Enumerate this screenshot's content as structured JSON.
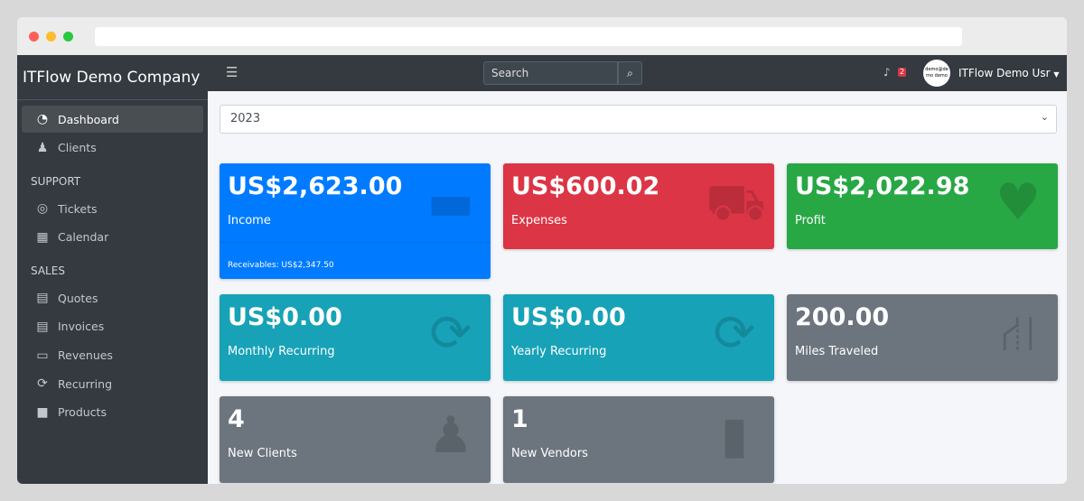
{
  "sidebar": {
    "brand": "ITFlow Demo Company",
    "items": [
      {
        "label": "Dashboard",
        "icon": "gauge-icon"
      },
      {
        "label": "Clients",
        "icon": "users-icon"
      }
    ],
    "support_header": "SUPPORT",
    "support": [
      {
        "label": "Tickets",
        "icon": "lifebuoy-icon"
      },
      {
        "label": "Calendar",
        "icon": "calendar-icon"
      }
    ],
    "sales_header": "SALES",
    "sales": [
      {
        "label": "Quotes",
        "icon": "file-icon"
      },
      {
        "label": "Invoices",
        "icon": "invoice-icon"
      },
      {
        "label": "Revenues",
        "icon": "card-icon"
      },
      {
        "label": "Recurring",
        "icon": "sync-icon"
      },
      {
        "label": "Products",
        "icon": "box-icon"
      }
    ]
  },
  "topbar": {
    "search_placeholder": "Search",
    "notifications": "2",
    "avatar_text": "demo@demo demo",
    "user": "ITFlow Demo Usr"
  },
  "year": "2023",
  "cards": [
    {
      "value": "US$2,623.00",
      "label": "Income",
      "footer": "Receivables: US$2,347.50",
      "color": "#007bff",
      "icon": "credit-card-icon"
    },
    {
      "value": "US$600.02",
      "label": "Expenses",
      "color": "#dc3545",
      "icon": "cart-icon"
    },
    {
      "value": "US$2,022.98",
      "label": "Profit",
      "color": "#28a745",
      "icon": "heart-icon"
    },
    {
      "value": "US$0.00",
      "label": "Monthly Recurring",
      "color": "#17a2b8",
      "icon": "sync-icon"
    },
    {
      "value": "US$0.00",
      "label": "Yearly Recurring",
      "color": "#17a2b8",
      "icon": "sync-icon"
    },
    {
      "value": "200.00",
      "label": "Miles Traveled",
      "color": "#6c757d",
      "icon": "route-icon"
    },
    {
      "value": "4",
      "label": "New Clients",
      "color": "#6c757d",
      "icon": "users-icon"
    },
    {
      "value": "1",
      "label": "New Vendors",
      "color": "#6c757d",
      "icon": "building-icon"
    }
  ]
}
